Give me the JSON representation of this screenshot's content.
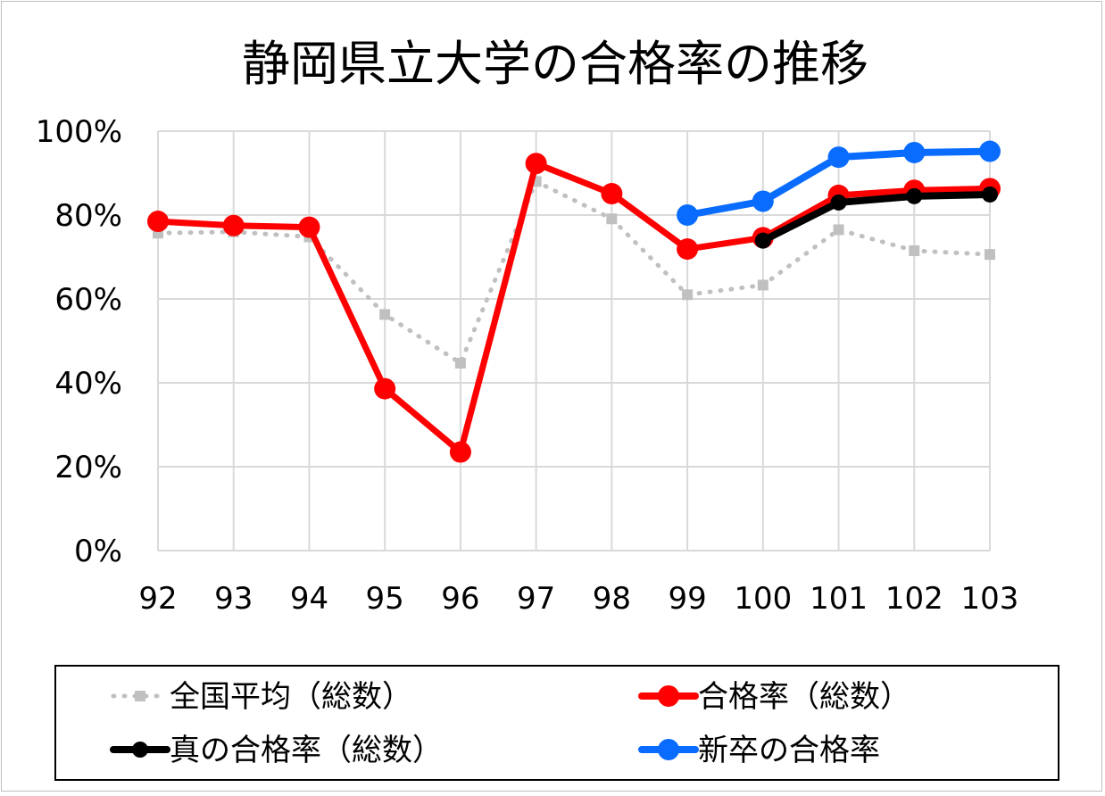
{
  "chart_data": {
    "type": "line",
    "title": "静岡県立大学の合格率の推移",
    "categories": [
      "92",
      "93",
      "94",
      "95",
      "96",
      "97",
      "98",
      "99",
      "100",
      "101",
      "102",
      "103"
    ],
    "ylim": [
      0,
      100
    ],
    "y_ticks": [
      "0%",
      "20%",
      "40%",
      "60%",
      "80%",
      "100%"
    ],
    "grid": true,
    "legend_position": "bottom",
    "series": [
      {
        "name": "全国平均（総数）",
        "color": "#c0c0c0",
        "style": "dotted",
        "marker": "square",
        "values": [
          75.7,
          76.0,
          74.8,
          56.3,
          44.7,
          88.0,
          79.1,
          61.0,
          63.3,
          76.5,
          71.5,
          70.6
        ]
      },
      {
        "name": "合格率（総数）",
        "color": "#ff0000",
        "style": "solid",
        "marker": "circle",
        "values": [
          78.5,
          77.5,
          77.1,
          38.6,
          23.5,
          92.3,
          85.1,
          71.9,
          74.6,
          84.7,
          85.9,
          86.3
        ]
      },
      {
        "name": "真の合格率（総数）",
        "color": "#000000",
        "style": "solid",
        "marker": "circle",
        "values": [
          null,
          null,
          null,
          null,
          null,
          null,
          null,
          null,
          73.9,
          83.0,
          84.5,
          84.9
        ]
      },
      {
        "name": "新卒の合格率",
        "color": "#0a6cff",
        "style": "solid",
        "marker": "circle",
        "values": [
          null,
          null,
          null,
          null,
          null,
          null,
          null,
          80.0,
          83.3,
          93.8,
          94.9,
          95.2
        ]
      }
    ]
  }
}
